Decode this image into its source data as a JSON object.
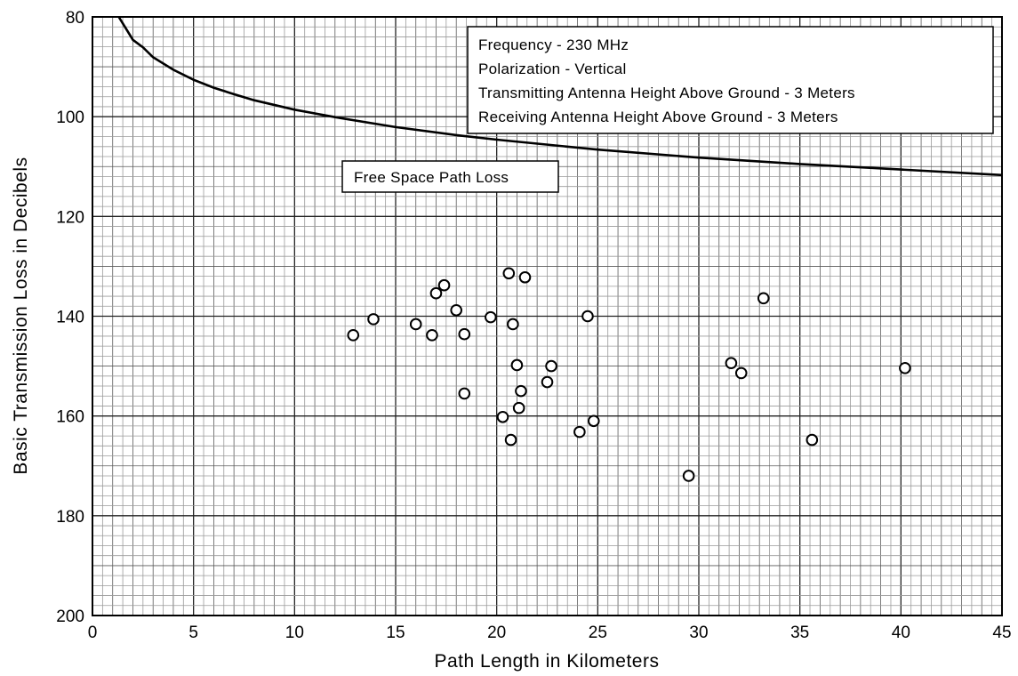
{
  "chart_data": {
    "type": "scatter",
    "xlabel": "Path Length in Kilometers",
    "ylabel": "Basic Transmission Loss in Decibels",
    "xlim": [
      0,
      45
    ],
    "ylim": [
      80,
      200
    ],
    "y_inverted": true,
    "grid": true,
    "xticks": [
      "0",
      "5",
      "10",
      "15",
      "20",
      "25",
      "30",
      "35",
      "40",
      "45"
    ],
    "yticks": [
      "80",
      "100",
      "120",
      "140",
      "160",
      "180",
      "200"
    ],
    "legend_box": {
      "position": "top-right",
      "lines": [
        "Frequency - 230 MHz",
        "Polarization - Vertical",
        "Transmitting Antenna Height Above Ground - 3 Meters",
        "Receiving Antenna Height Above Ground - 3 Meters"
      ]
    },
    "curve_label": "Free Space Path Loss",
    "series": [
      {
        "name": "Free Space Path Loss",
        "type": "line",
        "x": [
          1.3,
          1.5,
          2,
          2.5,
          3,
          4,
          5,
          6,
          7,
          8,
          10,
          12,
          15,
          18,
          20,
          25,
          30,
          35,
          40,
          45
        ],
        "y": [
          80,
          81.3,
          84.6,
          86.1,
          88.1,
          90.6,
          92.6,
          94.2,
          95.5,
          96.7,
          98.6,
          100.1,
          102.1,
          103.7,
          104.6,
          106.6,
          108.2,
          109.5,
          110.6,
          111.7
        ]
      },
      {
        "type": "scatter",
        "x": [
          12.9,
          13.9,
          16.0,
          16.8,
          17.0,
          17.4,
          18.0,
          18.4,
          18.4,
          19.7,
          20.3,
          20.6,
          20.7,
          20.8,
          21.0,
          21.1,
          21.2,
          21.4,
          22.5,
          22.7,
          24.1,
          24.5,
          24.8,
          29.5,
          31.6,
          32.1,
          33.2,
          35.6,
          40.2
        ],
        "y": [
          143.8,
          140.6,
          141.6,
          143.8,
          135.4,
          133.8,
          138.8,
          143.6,
          155.5,
          140.2,
          160.2,
          131.4,
          164.8,
          141.6,
          149.8,
          158.4,
          155.0,
          132.2,
          153.2,
          150.0,
          163.2,
          140.0,
          161.0,
          172.0,
          149.4,
          151.4,
          136.4,
          164.8,
          150.4
        ]
      }
    ]
  }
}
